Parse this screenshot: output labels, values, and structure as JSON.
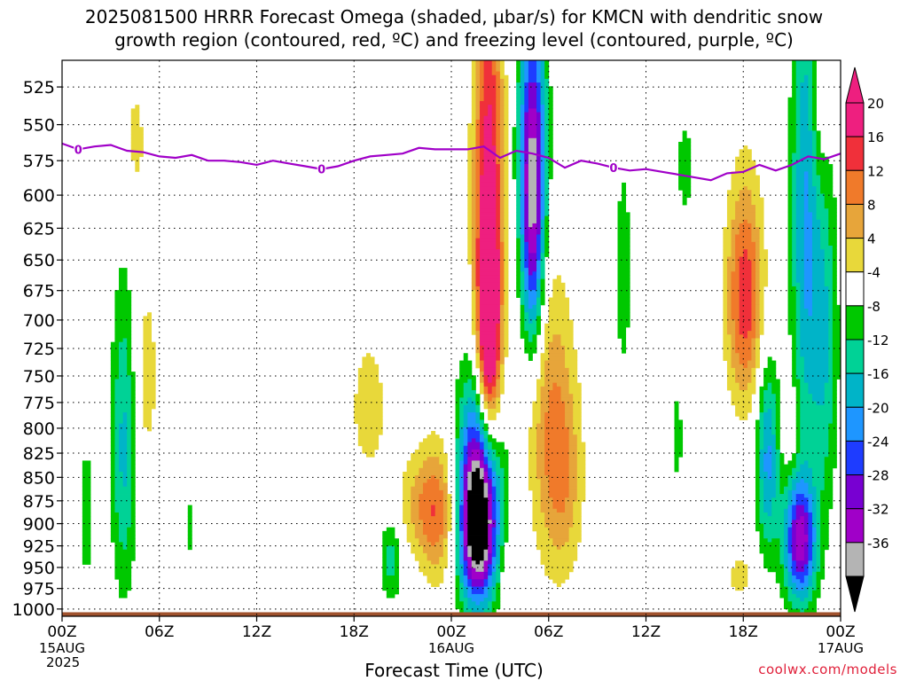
{
  "page": {
    "title_line1": "2025081500 HRRR Forecast Omega (shaded, µbar/s) for KMCN with dendritic snow",
    "title_line2": "growth region (contoured, red, ºC) and freezing level (contoured, purple, ºC)",
    "watermark": "coolwx.com/models"
  },
  "chart_data": {
    "type": "heatmap",
    "xlabel": "Forecast Time (UTC)",
    "x_ticks": [
      {
        "hour": 0,
        "label": "00Z",
        "sub": "15AUG",
        "sub2": "2025"
      },
      {
        "hour": 6,
        "label": "06Z"
      },
      {
        "hour": 12,
        "label": "12Z"
      },
      {
        "hour": 18,
        "label": "18Z"
      },
      {
        "hour": 24,
        "label": "00Z",
        "sub": "16AUG"
      },
      {
        "hour": 30,
        "label": "06Z"
      },
      {
        "hour": 36,
        "label": "12Z"
      },
      {
        "hour": 42,
        "label": "18Z"
      },
      {
        "hour": 48,
        "label": "00Z",
        "sub": "17AUG"
      }
    ],
    "xlim": [
      0,
      48
    ],
    "y_ticks": [
      525,
      550,
      575,
      600,
      625,
      650,
      675,
      700,
      725,
      750,
      775,
      800,
      825,
      850,
      875,
      900,
      925,
      950,
      975,
      1000
    ],
    "ylim": [
      1009,
      508
    ],
    "y_scale": "log-pressure",
    "grid": true,
    "colorbar": {
      "labels": [
        "20",
        "16",
        "12",
        "8",
        "4",
        "-4",
        "-8",
        "-12",
        "-16",
        "-20",
        "-24",
        "-28",
        "-32",
        "-36"
      ],
      "bins": [
        {
          "lo": 20,
          "hi": 24,
          "color": "#ee1f7f"
        },
        {
          "lo": 16,
          "hi": 20,
          "color": "#f0303a"
        },
        {
          "lo": 12,
          "hi": 16,
          "color": "#f07a2a"
        },
        {
          "lo": 8,
          "hi": 12,
          "color": "#e7a53a"
        },
        {
          "lo": 4,
          "hi": 8,
          "color": "#e8d83a"
        },
        {
          "lo": -4,
          "hi": 4,
          "color": "#ffffff"
        },
        {
          "lo": -8,
          "hi": -4,
          "color": "#00c800"
        },
        {
          "lo": -12,
          "hi": -8,
          "color": "#00d296"
        },
        {
          "lo": -16,
          "hi": -12,
          "color": "#00b4c8"
        },
        {
          "lo": -20,
          "hi": -16,
          "color": "#1e96ff"
        },
        {
          "lo": -24,
          "hi": -20,
          "color": "#1e3cff"
        },
        {
          "lo": -28,
          "hi": -24,
          "color": "#7800d2"
        },
        {
          "lo": -32,
          "hi": -28,
          "color": "#a000c8"
        },
        {
          "lo": -36,
          "hi": -32,
          "color": "#b4b4b4"
        }
      ],
      "over_color": "#ee1f7f",
      "under_color": "#000000"
    },
    "omega_features": [
      {
        "t": 1.5,
        "p": 890,
        "dt": 0.35,
        "dp": 70,
        "peak": -6
      },
      {
        "t": 3.8,
        "p": 820,
        "dt": 0.55,
        "dp": 110,
        "peak": -13
      },
      {
        "t": 4.5,
        "p": 560,
        "dt": 0.6,
        "dp": 40,
        "peak": 5
      },
      {
        "t": 5.2,
        "p": 750,
        "dt": 0.55,
        "dp": 70,
        "peak": 6
      },
      {
        "t": 7.8,
        "p": 905,
        "dt": 0.15,
        "dp": 35,
        "peak": -6
      },
      {
        "t": 18.9,
        "p": 780,
        "dt": 0.9,
        "dp": 55,
        "peak": 6
      },
      {
        "t": 20.3,
        "p": 940,
        "dt": 0.5,
        "dp": 35,
        "peak": -10
      },
      {
        "t": 22.0,
        "p": 880,
        "dt": 1.0,
        "dp": 40,
        "peak": 8
      },
      {
        "t": 23.2,
        "p": 890,
        "dt": 0.8,
        "dp": 55,
        "peak": 12
      },
      {
        "t": 25.8,
        "p": 860,
        "dt": 0.9,
        "dp": 80,
        "peak": -38
      },
      {
        "t": 25.6,
        "p": 920,
        "dt": 0.8,
        "dp": 55,
        "peak": -20
      },
      {
        "t": 26.3,
        "p": 640,
        "dt": 0.65,
        "dp": 160,
        "peak": 24
      },
      {
        "t": 26.3,
        "p": 720,
        "dt": 0.45,
        "dp": 70,
        "peak": 18
      },
      {
        "t": 27.4,
        "p": 960,
        "dt": 0.3,
        "dp": 35,
        "peak": 5
      },
      {
        "t": 29.0,
        "p": 570,
        "dt": 0.6,
        "dp": 70,
        "peak": -30
      },
      {
        "t": 29.0,
        "p": 660,
        "dt": 0.45,
        "dp": 60,
        "peak": -14
      },
      {
        "t": 30.2,
        "p": 800,
        "dt": 1.0,
        "dp": 100,
        "peak": 12
      },
      {
        "t": 31.1,
        "p": 860,
        "dt": 0.8,
        "dp": 70,
        "peak": 6
      },
      {
        "t": 34.6,
        "p": 660,
        "dt": 0.35,
        "dp": 65,
        "peak": -7
      },
      {
        "t": 37.9,
        "p": 810,
        "dt": 0.3,
        "dp": 40,
        "peak": -6
      },
      {
        "t": 38.4,
        "p": 580,
        "dt": 0.4,
        "dp": 30,
        "peak": -6
      },
      {
        "t": 42.1,
        "p": 680,
        "dt": 0.8,
        "dp": 65,
        "peak": 19
      },
      {
        "t": 41.8,
        "p": 960,
        "dt": 0.6,
        "dp": 20,
        "peak": 6
      },
      {
        "t": 43.5,
        "p": 830,
        "dt": 0.5,
        "dp": 70,
        "peak": -17
      },
      {
        "t": 44.9,
        "p": 800,
        "dt": 0.35,
        "dp": 25,
        "peak": 6
      },
      {
        "t": 45.5,
        "p": 920,
        "dt": 0.7,
        "dp": 50,
        "peak": -30
      },
      {
        "t": 45.8,
        "p": 620,
        "dt": 0.6,
        "dp": 140,
        "peak": -16
      },
      {
        "t": 47.0,
        "p": 720,
        "dt": 0.6,
        "dp": 110,
        "peak": -12
      },
      {
        "t": 46.7,
        "p": 540,
        "dt": 0.4,
        "dp": 40,
        "peak": 5
      }
    ],
    "freezing_level": {
      "name": "0",
      "color": "#a000c8",
      "t": [
        0,
        1,
        2,
        3,
        4,
        5,
        6,
        7,
        8,
        9,
        10,
        11,
        12,
        13,
        14,
        15,
        16,
        17,
        18,
        19,
        20,
        21,
        22,
        23,
        24,
        25,
        26,
        27,
        28,
        29,
        30,
        31,
        32,
        33,
        34,
        35,
        36,
        37,
        38,
        39,
        40,
        41,
        42,
        43,
        44,
        45,
        46,
        47,
        48
      ],
      "p": [
        563,
        567,
        565,
        564,
        568,
        569,
        572,
        573,
        571,
        575,
        575,
        576,
        578,
        575,
        577,
        579,
        581,
        579,
        575,
        572,
        571,
        570,
        566,
        567,
        567,
        567,
        565,
        573,
        568,
        570,
        573,
        580,
        575,
        577,
        580,
        582,
        581,
        583,
        585,
        587,
        589,
        584,
        583,
        578,
        582,
        578,
        572,
        574,
        570
      ],
      "labels": [
        {
          "t": 1.0,
          "label": "0"
        },
        {
          "t": 16.0,
          "label": "0"
        },
        {
          "t": 34.0,
          "label": "0"
        }
      ]
    },
    "surface_band": {
      "top_p": 1004,
      "bottom_p": 1009,
      "color": "#a0522d"
    }
  }
}
